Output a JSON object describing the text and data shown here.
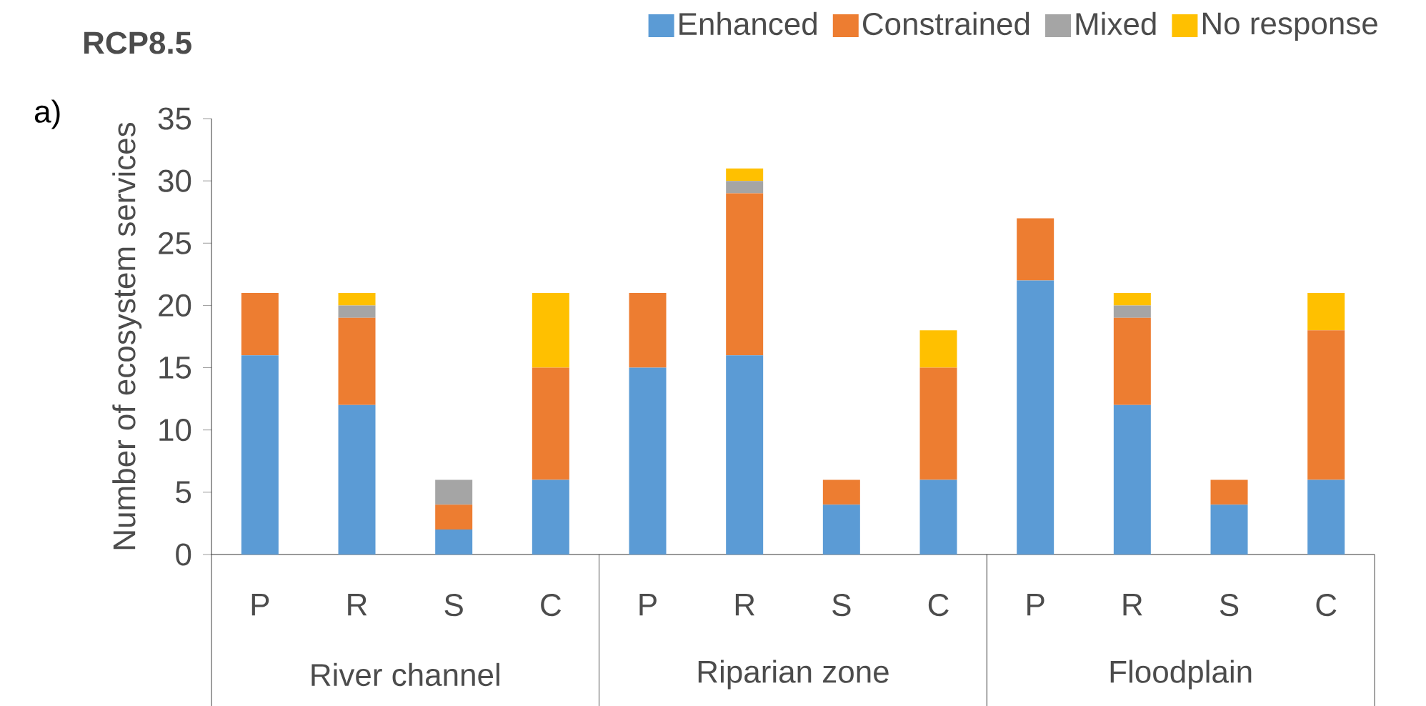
{
  "chart_data": {
    "type": "bar",
    "stacked": true,
    "title": "RCP8.5",
    "categories": [
      "P",
      "R",
      "S",
      "C",
      "P",
      "R",
      "S",
      "C",
      "P",
      "R",
      "S",
      "C"
    ],
    "ylabel": "Number of ecosystem services",
    "annotations": [
      "a)",
      "River channel",
      "Riparian zone",
      "Floodplain"
    ],
    "series": [
      {
        "name": "Enhanced",
        "color": "#5b9bd5",
        "values": [
          16,
          12,
          2,
          6,
          15,
          16,
          4,
          6,
          22,
          12,
          4,
          6
        ]
      },
      {
        "name": "Constrained",
        "color": "#ed7d31",
        "values": [
          5,
          7,
          2,
          9,
          6,
          13,
          2,
          9,
          5,
          7,
          2,
          12
        ]
      },
      {
        "name": "Mixed",
        "color": "#a5a5a5",
        "values": [
          0,
          1,
          2,
          0,
          0,
          1,
          0,
          0,
          0,
          1,
          0,
          0
        ]
      },
      {
        "name": "No response",
        "color": "#ffc000",
        "values": [
          0,
          1,
          0,
          6,
          0,
          1,
          0,
          3,
          0,
          1,
          0,
          3
        ]
      }
    ],
    "ylim": [
      0,
      35
    ],
    "yticks": [
      0,
      5,
      10,
      15,
      20,
      25,
      30,
      35
    ],
    "grid": false,
    "legend": "top"
  }
}
